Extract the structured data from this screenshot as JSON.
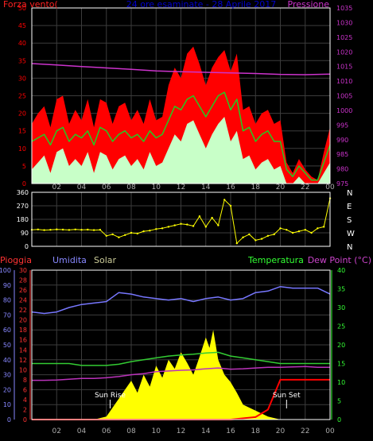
{
  "colors": {
    "background": "#000000",
    "frame": "#ffffff",
    "grid": "#3c3c3c",
    "wind_max": "#ff0000",
    "wind_avg": "#22cc22",
    "wind_min": "#c8ffc8",
    "pressure": "#cc33cc",
    "direction": "#ffff00",
    "rain_axis": "#ff3333",
    "rain": "#ff0000",
    "humidity_axis": "#8888ff",
    "humidity": "#7777ff",
    "solar_axis": "#cccc99",
    "solar": "#ffff00",
    "temperature_axis": "#33ff33",
    "temperature": "#33cc33",
    "dewpoint_axis": "#cc44cc",
    "dewpoint": "#bb33bb",
    "hour_labels": "#aaaaaa",
    "title": "#0000cc"
  },
  "time_axis": {
    "ticks": [
      "02",
      "04",
      "06",
      "08",
      "10",
      "12",
      "14",
      "16",
      "18",
      "20",
      "22",
      "00"
    ],
    "hours": [
      2,
      4,
      6,
      8,
      10,
      12,
      14,
      16,
      18,
      20,
      22,
      24
    ],
    "xlim": [
      0,
      24
    ]
  },
  "chart_data": [
    {
      "type": "line",
      "title": "24 ore esaminate - 28 Aprile 2017",
      "left_label": "Forza vento(",
      "right_label": "Pressione",
      "ylim_left": [
        0,
        50
      ],
      "ylim_right": [
        975,
        1035
      ],
      "left_ticks": [
        "0",
        "5",
        "10",
        "15",
        "20",
        "25",
        "30",
        "35",
        "40",
        "45",
        "50"
      ],
      "right_ticks": [
        "975",
        "980",
        "985",
        "990",
        "995",
        "1000",
        "1005",
        "1010",
        "1015",
        "1020",
        "1025",
        "1030",
        "1035"
      ],
      "grid": true,
      "series": [
        {
          "key": "wind_max",
          "axis": "left",
          "x": [
            0,
            0.5,
            1,
            1.5,
            2,
            2.5,
            3,
            3.5,
            4,
            4.5,
            5,
            5.5,
            6,
            6.5,
            7,
            7.5,
            8,
            8.5,
            9,
            9.5,
            10,
            10.5,
            11,
            11.5,
            12,
            12.5,
            13,
            13.5,
            14,
            14.5,
            15,
            15.5,
            16,
            16.5,
            17,
            17.5,
            18,
            18.5,
            19,
            19.5,
            20,
            20.5,
            21,
            21.5,
            22,
            22.5,
            23,
            23.5,
            24
          ],
          "values": [
            17,
            20,
            22,
            16,
            24,
            25,
            17,
            21,
            18,
            24,
            16,
            24,
            23,
            17,
            22,
            23,
            18,
            21,
            17,
            24,
            18,
            19,
            28,
            33,
            30,
            37,
            39,
            34,
            28,
            33,
            36,
            38,
            32,
            37,
            21,
            22,
            17,
            20,
            21,
            17,
            18,
            6,
            3,
            7,
            4,
            2,
            1,
            9,
            16
          ]
        },
        {
          "key": "wind_avg",
          "axis": "left",
          "x": [
            0,
            0.5,
            1,
            1.5,
            2,
            2.5,
            3,
            3.5,
            4,
            4.5,
            5,
            5.5,
            6,
            6.5,
            7,
            7.5,
            8,
            8.5,
            9,
            9.5,
            10,
            10.5,
            11,
            11.5,
            12,
            12.5,
            13,
            13.5,
            14,
            14.5,
            15,
            15.5,
            16,
            16.5,
            17,
            17.5,
            18,
            18.5,
            19,
            19.5,
            20,
            20.5,
            21,
            21.5,
            22,
            22.5,
            23,
            23.5,
            24
          ],
          "values": [
            12,
            13,
            14,
            11,
            15,
            16,
            12,
            14,
            13,
            15,
            11,
            16,
            15,
            12,
            14,
            15,
            13,
            14,
            12,
            15,
            13,
            14,
            18,
            22,
            21,
            24,
            25,
            22,
            19,
            22,
            25,
            26,
            21,
            24,
            15,
            16,
            12,
            14,
            15,
            12,
            12,
            4,
            2,
            5,
            3,
            1,
            1,
            6,
            11
          ]
        },
        {
          "key": "wind_min",
          "axis": "left",
          "x": [
            0,
            0.5,
            1,
            1.5,
            2,
            2.5,
            3,
            3.5,
            4,
            4.5,
            5,
            5.5,
            6,
            6.5,
            7,
            7.5,
            8,
            8.5,
            9,
            9.5,
            10,
            10.5,
            11,
            11.5,
            12,
            12.5,
            13,
            13.5,
            14,
            14.5,
            15,
            15.5,
            16,
            16.5,
            17,
            17.5,
            18,
            18.5,
            19,
            19.5,
            20,
            20.5,
            21,
            21.5,
            22,
            22.5,
            23,
            23.5,
            24
          ],
          "values": [
            4,
            6,
            8,
            3,
            9,
            10,
            5,
            7,
            5,
            9,
            3,
            9,
            8,
            4,
            7,
            8,
            5,
            7,
            4,
            9,
            5,
            6,
            10,
            14,
            12,
            17,
            18,
            14,
            10,
            14,
            17,
            19,
            12,
            15,
            7,
            8,
            4,
            6,
            7,
            4,
            5,
            0,
            0,
            2,
            0,
            0,
            0,
            3,
            6
          ]
        },
        {
          "key": "pressure",
          "axis": "right",
          "x": [
            0,
            2,
            4,
            6,
            8,
            10,
            12,
            14,
            16,
            18,
            20,
            22,
            24
          ],
          "values": [
            1016,
            1015.5,
            1015,
            1014.5,
            1014,
            1013.5,
            1013.2,
            1013,
            1012.8,
            1012.6,
            1012.3,
            1012.2,
            1012.4
          ]
        }
      ]
    },
    {
      "type": "scatter",
      "ylim": [
        0,
        360
      ],
      "left_ticks": [
        "0",
        "90",
        "180",
        "270",
        "360"
      ],
      "right_labels": [
        "N",
        "W",
        "S",
        "E",
        "N"
      ],
      "grid": true,
      "series": [
        {
          "key": "direction",
          "x": [
            0,
            0.5,
            1,
            1.5,
            2,
            2.5,
            3,
            3.5,
            4,
            4.5,
            5,
            5.5,
            6,
            6.5,
            7,
            7.5,
            8,
            8.5,
            9,
            9.5,
            10,
            10.5,
            11,
            11.5,
            12,
            12.5,
            13,
            13.5,
            14,
            14.5,
            15,
            15.5,
            16,
            16.5,
            17,
            17.5,
            18,
            18.5,
            19,
            19.5,
            20,
            20.5,
            21,
            21.5,
            22,
            22.5,
            23,
            23.5,
            24
          ],
          "values": [
            110,
            112,
            108,
            110,
            113,
            111,
            109,
            112,
            110,
            111,
            108,
            110,
            70,
            80,
            60,
            75,
            90,
            85,
            100,
            105,
            115,
            120,
            130,
            140,
            150,
            145,
            135,
            200,
            130,
            190,
            140,
            310,
            270,
            20,
            60,
            80,
            40,
            50,
            70,
            80,
            120,
            110,
            90,
            100,
            110,
            90,
            120,
            130,
            320
          ]
        }
      ]
    },
    {
      "type": "line",
      "labels": {
        "rain": "Pioggia",
        "humidity": "Umidita",
        "solar": "Solar",
        "temperature": "Temperatura",
        "dewpoint": "Dew Point (°C)"
      },
      "humidity_ticks": [
        "0",
        "10",
        "20",
        "30",
        "40",
        "50",
        "60",
        "70",
        "80",
        "90",
        "100"
      ],
      "rain_ticks": [
        "0",
        "2",
        "4",
        "6",
        "8",
        "10",
        "12",
        "14",
        "16",
        "18",
        "20",
        "22",
        "24",
        "26",
        "28",
        "30"
      ],
      "temp_ticks": [
        "0",
        "5",
        "10",
        "15",
        "20",
        "25",
        "30",
        "35",
        "40"
      ],
      "ylim_humidity": [
        0,
        100
      ],
      "ylim_rain": [
        0,
        30
      ],
      "ylim_temperature": [
        0,
        40
      ],
      "ylim_solar": [
        0,
        100
      ],
      "annotations": [
        {
          "text": "Sun Rise",
          "x": 6.3
        },
        {
          "text": "Sun Set",
          "x": 20.5
        }
      ],
      "grid": true,
      "series": [
        {
          "key": "humidity",
          "axis": "humidity",
          "x": [
            0,
            1,
            2,
            3,
            4,
            5,
            6,
            7,
            8,
            9,
            10,
            11,
            12,
            13,
            14,
            15,
            16,
            17,
            18,
            19,
            20,
            21,
            22,
            23,
            24
          ],
          "values": [
            72,
            71,
            72,
            75,
            77,
            78,
            79,
            85,
            84,
            82,
            81,
            80,
            81,
            79,
            81,
            82,
            80,
            81,
            85,
            86,
            89,
            88,
            88,
            88,
            84
          ]
        },
        {
          "key": "temperature",
          "axis": "temperature",
          "x": [
            0,
            1,
            2,
            3,
            4,
            5,
            6,
            7,
            8,
            9,
            10,
            11,
            12,
            13,
            14,
            15,
            16,
            17,
            18,
            19,
            20,
            21,
            22,
            23,
            24
          ],
          "values": [
            15,
            15,
            15,
            15,
            14.5,
            14.5,
            14.5,
            14.8,
            15.5,
            16,
            16.5,
            17,
            17.3,
            17.5,
            17.8,
            18,
            17,
            16.5,
            16,
            15.5,
            15,
            15,
            15,
            15,
            15
          ]
        },
        {
          "key": "dewpoint",
          "axis": "temperature",
          "x": [
            0,
            1,
            2,
            3,
            4,
            5,
            6,
            7,
            8,
            9,
            10,
            11,
            12,
            13,
            14,
            15,
            16,
            17,
            18,
            19,
            20,
            21,
            22,
            23,
            24
          ],
          "values": [
            10.5,
            10.5,
            10.6,
            10.8,
            11,
            11,
            11.2,
            11.5,
            12,
            12.3,
            12.8,
            13,
            13.2,
            13.3,
            13.6,
            13.8,
            13.5,
            13.6,
            13.8,
            14,
            14,
            14.1,
            14.2,
            14,
            14
          ]
        },
        {
          "key": "solar",
          "axis": "solar",
          "x": [
            0,
            5,
            6,
            6.5,
            7,
            7.5,
            8,
            8.5,
            9,
            9.5,
            10,
            10.5,
            11,
            11.5,
            12,
            12.5,
            13,
            13.5,
            14,
            14.3,
            14.6,
            15,
            15.5,
            16,
            16.5,
            17,
            17.5,
            18,
            18.5,
            19,
            19.5,
            20,
            24
          ],
          "values": [
            0,
            0,
            2,
            8,
            14,
            20,
            26,
            18,
            30,
            22,
            36,
            28,
            40,
            34,
            45,
            38,
            30,
            42,
            55,
            48,
            60,
            40,
            30,
            25,
            18,
            10,
            8,
            6,
            4,
            2,
            1,
            0,
            0
          ]
        },
        {
          "key": "rain",
          "axis": "rain",
          "x": [
            0,
            16,
            18,
            19,
            20,
            24
          ],
          "values": [
            0,
            0,
            0.5,
            2,
            8,
            8
          ]
        }
      ]
    }
  ]
}
